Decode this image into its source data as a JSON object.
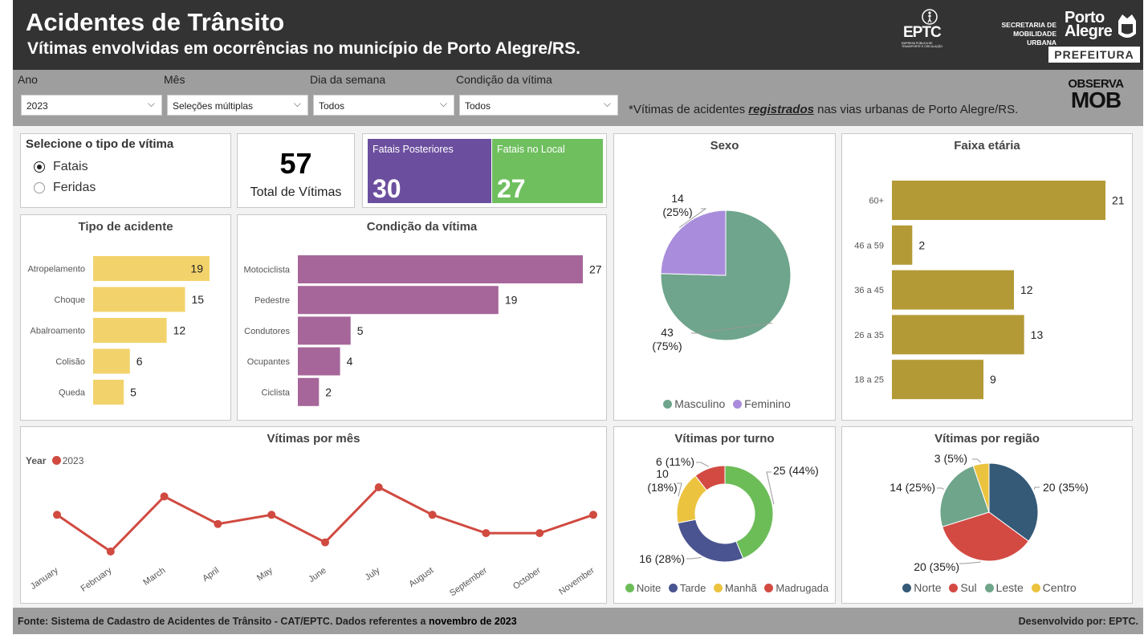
{
  "header": {
    "title": "Acidentes de Trânsito",
    "subtitle": "Vítimas envolvidas em ocorrências no município de Porto Alegre/RS.",
    "eptc_logo": "EPTC",
    "eptc_tagline": "EMPRESA PÚBLICA DE TRANSPORTE E CIRCULAÇÃO",
    "secretaria_line1": "SECRETARIA DE",
    "secretaria_line2": "MOBILIDADE URBANA",
    "pa_logo_line1": "Porto",
    "pa_logo_line2": "Alegre",
    "pa_badge": "PREFEITURA"
  },
  "filters": {
    "ano": {
      "label": "Ano",
      "value": "2023"
    },
    "mes": {
      "label": "Mês",
      "value": "Seleções múltiplas"
    },
    "dia": {
      "label": "Dia da semana",
      "value": "Todos"
    },
    "condicao": {
      "label": "Condição da vítima",
      "value": "Todos"
    },
    "note_pre": "*Vítimas de acidentes ",
    "note_bold": "registrados",
    "note_post": " nas vias urbanas de Porto Alegre/RS.",
    "observa_line1": "OBSERVA",
    "observa_line2": "MOB"
  },
  "tipo_vitima": {
    "title": "Selecione o tipo de vítima",
    "options": [
      "Fatais",
      "Feridas"
    ],
    "selected": "Fatais"
  },
  "kpi": {
    "value": "57",
    "label": "Total de Vítimas"
  },
  "tiles": {
    "posteriores": {
      "label": "Fatais Posteriores",
      "value": "30",
      "color": "#6b4f9e"
    },
    "local": {
      "label": "Fatais no Local",
      "value": "27",
      "color": "#6fbf5f"
    }
  },
  "sexo_legend": [
    "Masculino",
    "Feminino"
  ],
  "turno_legend": [
    "Noite",
    "Tarde",
    "Manhã",
    "Madrugada"
  ],
  "regiao_legend": [
    "Norte",
    "Sul",
    "Leste",
    "Centro"
  ],
  "mes_legend": {
    "label": "Year",
    "series": "2023"
  },
  "footer": {
    "source_pre": "Fonte: Sistema de Cadastro de Acidentes de Trânsito - CAT/EPTC. Dados referentes a ",
    "source_bold": "novembro de 2023",
    "dev": "Desenvolvido por: EPTC."
  },
  "chart_data": [
    {
      "id": "tipo",
      "type": "bar",
      "title": "Tipo de acidente",
      "categories": [
        "Atropelamento",
        "Choque",
        "Abalroamento",
        "Colisão",
        "Queda"
      ],
      "values": [
        19,
        15,
        12,
        6,
        5
      ],
      "color": "#f2d36b"
    },
    {
      "id": "condicao",
      "type": "bar",
      "title": "Condição da vítima",
      "categories": [
        "Motociclista",
        "Pedestre",
        "Condutores",
        "Ocupantes",
        "Ciclista"
      ],
      "values": [
        27,
        19,
        5,
        4,
        2
      ],
      "color": "#a6669a"
    },
    {
      "id": "faixa",
      "type": "bar",
      "title": "Faixa etária",
      "categories": [
        "60+",
        "46 a 59",
        "36 a 45",
        "26 a 35",
        "18 a 25"
      ],
      "values": [
        21,
        2,
        12,
        13,
        9
      ],
      "color": "#b39a36"
    },
    {
      "id": "sexo",
      "type": "pie",
      "title": "Sexo",
      "labels": [
        "Masculino",
        "Feminino"
      ],
      "values": [
        43,
        14
      ],
      "percent_labels": [
        "(75%)",
        "(25%)"
      ],
      "colors": [
        "#6ea58c",
        "#a98ddc"
      ]
    },
    {
      "id": "turno",
      "type": "pie",
      "donut": true,
      "title": "Vítimas por turno",
      "labels": [
        "Noite",
        "Tarde",
        "Manhã",
        "Madrugada"
      ],
      "values": [
        25,
        16,
        10,
        6
      ],
      "percent_labels": [
        "25 (44%)",
        "16 (28%)",
        "10 (18%)",
        "6 (11%)"
      ],
      "colors": [
        "#6cbd58",
        "#4a5490",
        "#ecc33e",
        "#d34a43"
      ]
    },
    {
      "id": "regiao",
      "type": "pie",
      "title": "Vítimas por região",
      "labels": [
        "Norte",
        "Sul",
        "Leste",
        "Centro"
      ],
      "values": [
        20,
        20,
        14,
        3
      ],
      "percent_labels": [
        "20 (35%)",
        "20 (35%)",
        "14 (25%)",
        "3 (5%)"
      ],
      "colors": [
        "#355a78",
        "#d34a43",
        "#6fa58a",
        "#ecc33e"
      ]
    },
    {
      "id": "mes",
      "type": "line",
      "title": "Vítimas por mês",
      "series": [
        {
          "name": "2023",
          "color": "#d04a40",
          "x": [
            "January",
            "February",
            "March",
            "April",
            "May",
            "June",
            "July",
            "August",
            "September",
            "October",
            "November"
          ],
          "y": [
            6,
            2,
            8,
            5,
            6,
            3,
            9,
            6,
            4,
            4,
            6
          ]
        }
      ]
    }
  ]
}
